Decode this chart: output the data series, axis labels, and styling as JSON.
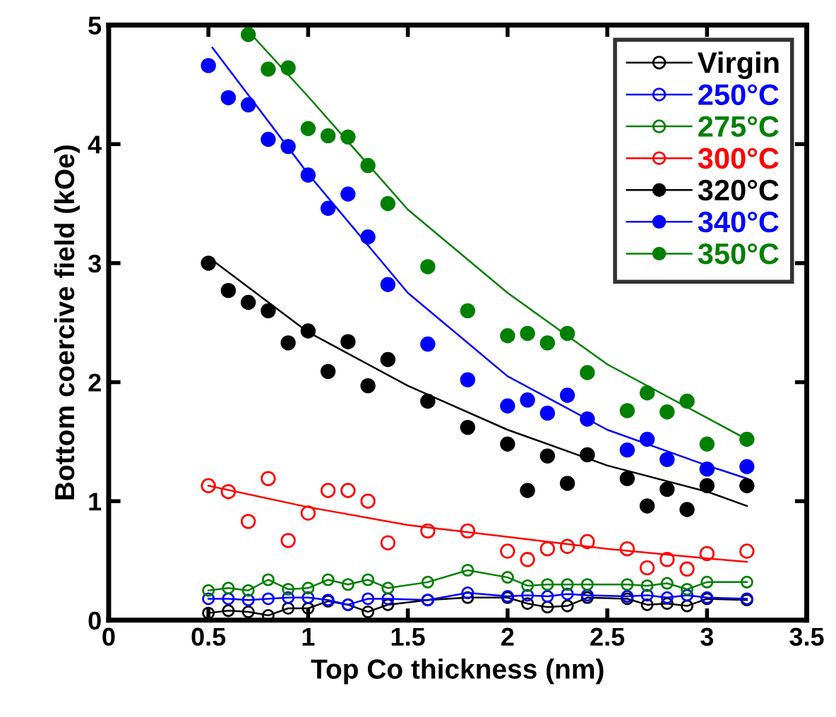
{
  "chart_data": {
    "type": "scatter",
    "xlabel": "Top Co thickness (nm)",
    "ylabel": "Bottom coercive field (kOe)",
    "xlim": [
      0,
      3.5
    ],
    "ylim": [
      0,
      5
    ],
    "xticks": [
      0,
      0.5,
      1,
      1.5,
      2,
      2.5,
      3,
      3.5
    ],
    "yticks": [
      0,
      1,
      2,
      3,
      4,
      5
    ],
    "grid": false,
    "legend": "top right",
    "marker": "circle",
    "series": [
      {
        "name": "Virgin",
        "type": "line",
        "color": "#000000",
        "x": [
          0.5,
          0.6,
          0.7,
          0.8,
          0.9,
          1.0,
          1.1,
          1.2,
          1.3,
          1.4,
          1.6,
          1.8,
          2.0,
          2.1,
          2.2,
          2.3,
          2.4,
          2.6,
          2.7,
          2.8,
          2.9,
          3.0,
          3.2
        ],
        "values": [
          0.06,
          0.08,
          0.07,
          0.04,
          0.1,
          0.1,
          0.16,
          0.13,
          0.07,
          0.13,
          0.17,
          0.19,
          0.19,
          0.14,
          0.11,
          0.12,
          0.19,
          0.18,
          0.13,
          0.14,
          0.12,
          0.18,
          0.17
        ]
      },
      {
        "name": "250°C",
        "type": "line",
        "color": "#0000ff",
        "x": [
          0.5,
          0.6,
          0.7,
          0.8,
          0.9,
          1.0,
          1.1,
          1.2,
          1.3,
          1.4,
          1.6,
          1.8,
          2.0,
          2.1,
          2.2,
          2.3,
          2.4,
          2.6,
          2.7,
          2.8,
          2.9,
          3.0,
          3.2
        ],
        "values": [
          0.18,
          0.18,
          0.17,
          0.18,
          0.19,
          0.19,
          0.17,
          0.13,
          0.18,
          0.18,
          0.17,
          0.23,
          0.2,
          0.21,
          0.2,
          0.22,
          0.21,
          0.2,
          0.21,
          0.19,
          0.21,
          0.19,
          0.18
        ]
      },
      {
        "name": "275°C",
        "type": "line",
        "color": "#008000",
        "x": [
          0.5,
          0.6,
          0.7,
          0.8,
          0.9,
          1.0,
          1.1,
          1.2,
          1.3,
          1.4,
          1.6,
          1.8,
          2.0,
          2.1,
          2.2,
          2.3,
          2.4,
          2.6,
          2.7,
          2.8,
          2.9,
          3.0,
          3.2
        ],
        "values": [
          0.25,
          0.27,
          0.25,
          0.34,
          0.26,
          0.27,
          0.34,
          0.3,
          0.34,
          0.27,
          0.32,
          0.42,
          0.36,
          0.29,
          0.3,
          0.3,
          0.3,
          0.3,
          0.29,
          0.31,
          0.26,
          0.32,
          0.32
        ]
      },
      {
        "name": "300°C",
        "color": "#ff0000",
        "x": [
          0.5,
          0.6,
          0.7,
          0.8,
          0.9,
          1.0,
          1.1,
          1.2,
          1.3,
          1.4,
          1.6,
          1.8,
          2.0,
          2.1,
          2.2,
          2.3,
          2.4,
          2.6,
          2.7,
          2.8,
          2.9,
          3.0,
          3.2
        ],
        "values": [
          1.13,
          1.08,
          0.83,
          1.19,
          0.67,
          0.9,
          1.09,
          1.09,
          1.0,
          0.65,
          0.75,
          0.75,
          0.58,
          0.51,
          0.6,
          0.62,
          0.66,
          0.6,
          0.44,
          0.51,
          0.43,
          0.56,
          0.58
        ]
      },
      {
        "name": "320°C",
        "color": "#000000",
        "x": [
          0.5,
          0.6,
          0.7,
          0.8,
          0.9,
          1.0,
          1.1,
          1.2,
          1.3,
          1.4,
          1.6,
          1.8,
          2.0,
          2.1,
          2.2,
          2.3,
          2.4,
          2.6,
          2.7,
          2.8,
          2.9,
          3.0,
          3.2
        ],
        "values": [
          3.0,
          2.77,
          2.67,
          2.6,
          2.33,
          2.43,
          2.09,
          2.34,
          1.97,
          2.19,
          1.84,
          1.62,
          1.48,
          1.09,
          1.38,
          1.15,
          1.39,
          1.19,
          0.96,
          1.1,
          0.93,
          1.13,
          1.13
        ]
      },
      {
        "name": "340°C",
        "color": "#0000ff",
        "x": [
          0.5,
          0.6,
          0.7,
          0.8,
          0.9,
          1.0,
          1.1,
          1.2,
          1.3,
          1.4,
          1.6,
          1.8,
          2.0,
          2.1,
          2.2,
          2.3,
          2.4,
          2.6,
          2.7,
          2.8,
          2.9,
          3.0,
          3.2
        ],
        "values": [
          4.66,
          4.39,
          4.33,
          4.04,
          3.98,
          3.74,
          3.46,
          3.58,
          3.22,
          2.82,
          2.32,
          2.02,
          1.8,
          1.85,
          1.74,
          1.89,
          1.69,
          1.43,
          1.52,
          1.35,
          null,
          1.27,
          1.29
        ]
      },
      {
        "name": "350°C",
        "color": "#008000",
        "x": [
          0.7,
          0.8,
          0.9,
          1.0,
          1.1,
          1.2,
          1.3,
          1.4,
          1.6,
          1.8,
          2.0,
          2.1,
          2.2,
          2.3,
          2.4,
          2.6,
          2.7,
          2.8,
          2.9,
          3.0,
          3.2
        ],
        "values": [
          4.92,
          4.63,
          4.64,
          4.13,
          4.07,
          4.06,
          3.82,
          3.5,
          2.97,
          2.6,
          2.39,
          2.41,
          2.33,
          2.41,
          2.08,
          1.76,
          1.91,
          1.75,
          1.84,
          1.48,
          1.52
        ]
      },
      {
        "type": "line",
        "marker": "none",
        "color": "#ff0000",
        "x": [
          0.5,
          1.0,
          1.5,
          2.0,
          2.5,
          3.0,
          3.2
        ],
        "values": [
          1.13,
          0.95,
          0.8,
          0.7,
          0.6,
          0.52,
          0.49
        ]
      },
      {
        "type": "line",
        "marker": "none",
        "color": "#000000",
        "x": [
          0.5,
          1.0,
          1.5,
          2.0,
          2.5,
          3.0,
          3.2
        ],
        "values": [
          3.05,
          2.42,
          1.97,
          1.6,
          1.3,
          1.08,
          0.96
        ]
      },
      {
        "type": "line",
        "marker": "none",
        "color": "#0000ff",
        "x": [
          0.52,
          1.0,
          1.5,
          2.0,
          2.5,
          3.0,
          3.2
        ],
        "values": [
          4.81,
          3.75,
          2.75,
          2.05,
          1.6,
          1.3,
          1.19
        ]
      },
      {
        "type": "line",
        "marker": "none",
        "color": "#008000",
        "x": [
          0.7,
          1.0,
          1.5,
          2.0,
          2.5,
          3.0,
          3.2
        ],
        "values": [
          4.95,
          4.4,
          3.45,
          2.75,
          2.15,
          1.7,
          1.52
        ]
      }
    ]
  }
}
